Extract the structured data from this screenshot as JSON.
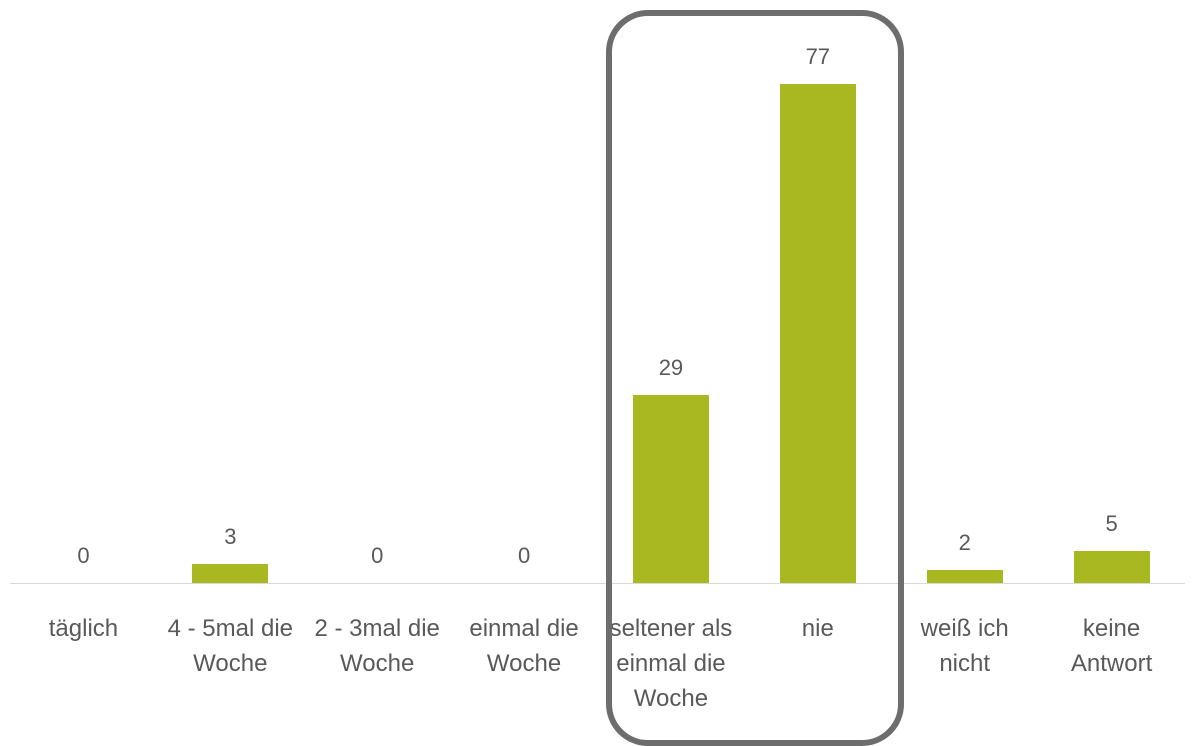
{
  "chart_data": {
    "type": "bar",
    "categories": [
      "täglich",
      "4 - 5mal die Woche",
      "2 - 3mal die Woche",
      "einmal die Woche",
      "seltener als einmal die Woche",
      "nie",
      "weiß ich nicht",
      "keine Antwort"
    ],
    "values": [
      0,
      3,
      0,
      0,
      29,
      77,
      2,
      5
    ],
    "color": "#a8b820"
  }
}
